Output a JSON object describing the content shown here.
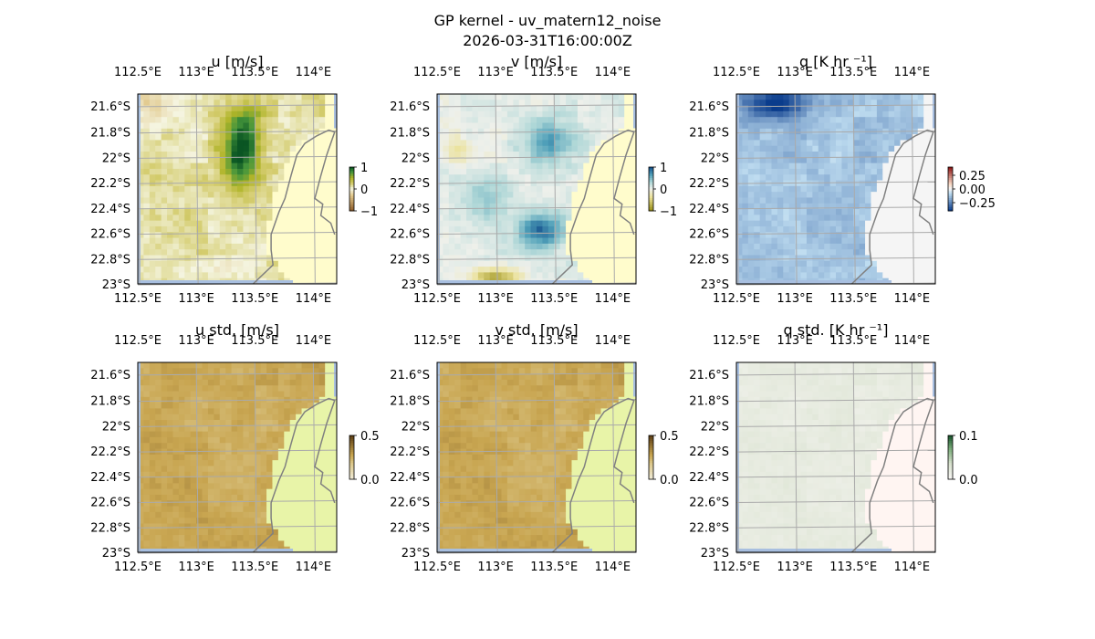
{
  "figure": {
    "title": "GP kernel - uv_matern12_noise",
    "subtitle": "2026-03-31T16:00:00Z"
  },
  "colors": {
    "land": "#fffccc",
    "ocean_edge": "#a8bfe0",
    "coast": "#808080",
    "grid": "#aaaaaa"
  },
  "chart_data": [
    {
      "type": "heatmap",
      "name": "u",
      "title": "u [m/s]",
      "colormap": "brown-yellow-green",
      "clim": [
        -1,
        1
      ],
      "colorbar_ticks": [
        "1",
        "0",
        "−1"
      ],
      "field": "u",
      "x_ticks": [
        "112.5°E",
        "113°E",
        "113.5°E",
        "114°E"
      ],
      "y_ticks": [
        "21.6°S",
        "21.8°S",
        "22°S",
        "22.2°S",
        "22.4°S",
        "22.6°S",
        "22.8°S",
        "23°S"
      ],
      "lon_range": [
        112.5,
        114.2
      ],
      "lat_range": [
        -23.0,
        -21.5
      ]
    },
    {
      "type": "heatmap",
      "name": "v",
      "title": "v [m/s]",
      "colormap": "brown-white-blue",
      "clim": [
        -1,
        1
      ],
      "colorbar_ticks": [
        "1",
        "0",
        "−1"
      ],
      "field": "v",
      "x_ticks": [
        "112.5°E",
        "113°E",
        "113.5°E",
        "114°E"
      ],
      "y_ticks": [
        "21.6°S",
        "21.8°S",
        "22°S",
        "22.2°S",
        "22.4°S",
        "22.6°S",
        "22.8°S",
        "23°S"
      ],
      "lon_range": [
        112.5,
        114.2
      ],
      "lat_range": [
        -23.0,
        -21.5
      ]
    },
    {
      "type": "heatmap",
      "name": "q",
      "title": "q [K hr ⁻¹]",
      "colormap": "red-white-blue",
      "clim": [
        -0.25,
        0.25
      ],
      "colorbar_ticks": [
        "0.25",
        "0.00",
        "−0.25"
      ],
      "field": "q",
      "x_ticks": [
        "112.5°E",
        "113°E",
        "113.5°E",
        "114°E"
      ],
      "y_ticks": [
        "21.6°S",
        "21.8°S",
        "22°S",
        "22.2°S",
        "22.4°S",
        "22.6°S",
        "22.8°S",
        "23°S"
      ],
      "lon_range": [
        112.5,
        114.2
      ],
      "lat_range": [
        -23.0,
        -21.5
      ]
    },
    {
      "type": "heatmap",
      "name": "u_std",
      "title": "u std. [m/s]",
      "colormap": "std-brown",
      "clim": [
        0,
        0.5
      ],
      "colorbar_ticks": [
        "0.5",
        "0.0"
      ],
      "field": "std",
      "x_ticks": [
        "112.5°E",
        "113°E",
        "113.5°E",
        "114°E"
      ],
      "y_ticks": [
        "21.6°S",
        "21.8°S",
        "22°S",
        "22.2°S",
        "22.4°S",
        "22.6°S",
        "22.8°S",
        "23°S"
      ],
      "lon_range": [
        112.5,
        114.2
      ],
      "lat_range": [
        -23.0,
        -21.5
      ]
    },
    {
      "type": "heatmap",
      "name": "v_std",
      "title": "v std. [m/s]",
      "colormap": "std-brown",
      "clim": [
        0,
        0.5
      ],
      "colorbar_ticks": [
        "0.5",
        "0.0"
      ],
      "field": "std",
      "x_ticks": [
        "112.5°E",
        "113°E",
        "113.5°E",
        "114°E"
      ],
      "y_ticks": [
        "21.6°S",
        "21.8°S",
        "22°S",
        "22.2°S",
        "22.4°S",
        "22.6°S",
        "22.8°S",
        "23°S"
      ],
      "lon_range": [
        112.5,
        114.2
      ],
      "lat_range": [
        -23.0,
        -21.5
      ]
    },
    {
      "type": "heatmap",
      "name": "q_std",
      "title": "q std. [K hr ⁻¹]",
      "colormap": "std-green",
      "clim": [
        0,
        0.1
      ],
      "colorbar_ticks": [
        "0.1",
        "0.0"
      ],
      "field": "qstd",
      "x_ticks": [
        "112.5°E",
        "113°E",
        "113.5°E",
        "114°E"
      ],
      "y_ticks": [
        "21.6°S",
        "21.8°S",
        "22°S",
        "22.2°S",
        "22.4°S",
        "22.6°S",
        "22.8°S",
        "23°S"
      ],
      "lon_range": [
        112.5,
        114.2
      ],
      "lat_range": [
        -23.0,
        -21.5
      ]
    }
  ]
}
